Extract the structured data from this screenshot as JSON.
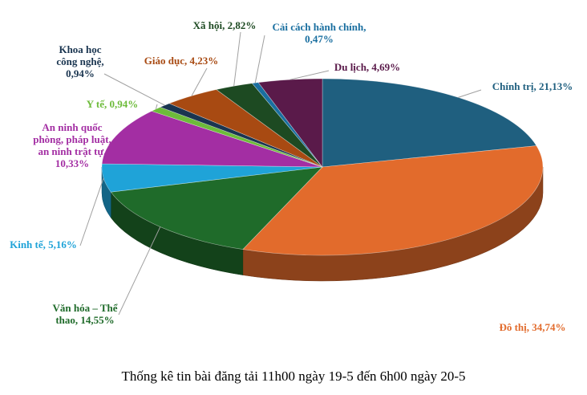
{
  "chart_data": {
    "type": "pie",
    "title": "",
    "caption": "Thống kê tin bài đăng tải 11h00 ngày 19-5 đến 6h00 ngày 20-5",
    "slices": [
      {
        "label": [
          "Chính trị, 21,13%"
        ],
        "value": 21.13,
        "color": "#1f5f7f",
        "label_color": "#1f5f7f"
      },
      {
        "label": [
          "Đô thị, 34,74%"
        ],
        "value": 34.74,
        "color": "#e26b2c",
        "label_color": "#e26b2c"
      },
      {
        "label": [
          "Văn hóa – Thể",
          "thao, 14,55%"
        ],
        "value": 14.55,
        "color": "#1f6b2a",
        "label_color": "#1f6b2a"
      },
      {
        "label": [
          "Kinh tế, 5,16%"
        ],
        "value": 5.16,
        "color": "#1fa3d8",
        "label_color": "#1fa3d8"
      },
      {
        "label": [
          "An ninh quốc",
          "phòng, pháp luật,",
          "an ninh trật tự,",
          "10,33%"
        ],
        "value": 10.33,
        "color": "#a32ea3",
        "label_color": "#a32ea3"
      },
      {
        "label": [
          "Y tế, 0,94%"
        ],
        "value": 0.94,
        "color": "#6dbb3a",
        "label_color": "#6dbb3a"
      },
      {
        "label": [
          "Khoa học",
          "công nghệ,",
          "0,94%"
        ],
        "value": 0.94,
        "color": "#1a3550",
        "label_color": "#1a3550"
      },
      {
        "label": [
          "Giáo dục, 4,23%"
        ],
        "value": 4.23,
        "color": "#a84a12",
        "label_color": "#a84a12"
      },
      {
        "label": [
          "Xã hội, 2,82%"
        ],
        "value": 2.82,
        "color": "#1d4a22",
        "label_color": "#1d4a22"
      },
      {
        "label": [
          "Cải cách hành chính,",
          "0,47%"
        ],
        "value": 0.47,
        "color": "#1a6fa0",
        "label_color": "#1a6fa0"
      },
      {
        "label": [
          "Du lịch, 4,69%"
        ],
        "value": 4.69,
        "color": "#5a1a4a",
        "label_color": "#5a1a4a"
      }
    ]
  }
}
